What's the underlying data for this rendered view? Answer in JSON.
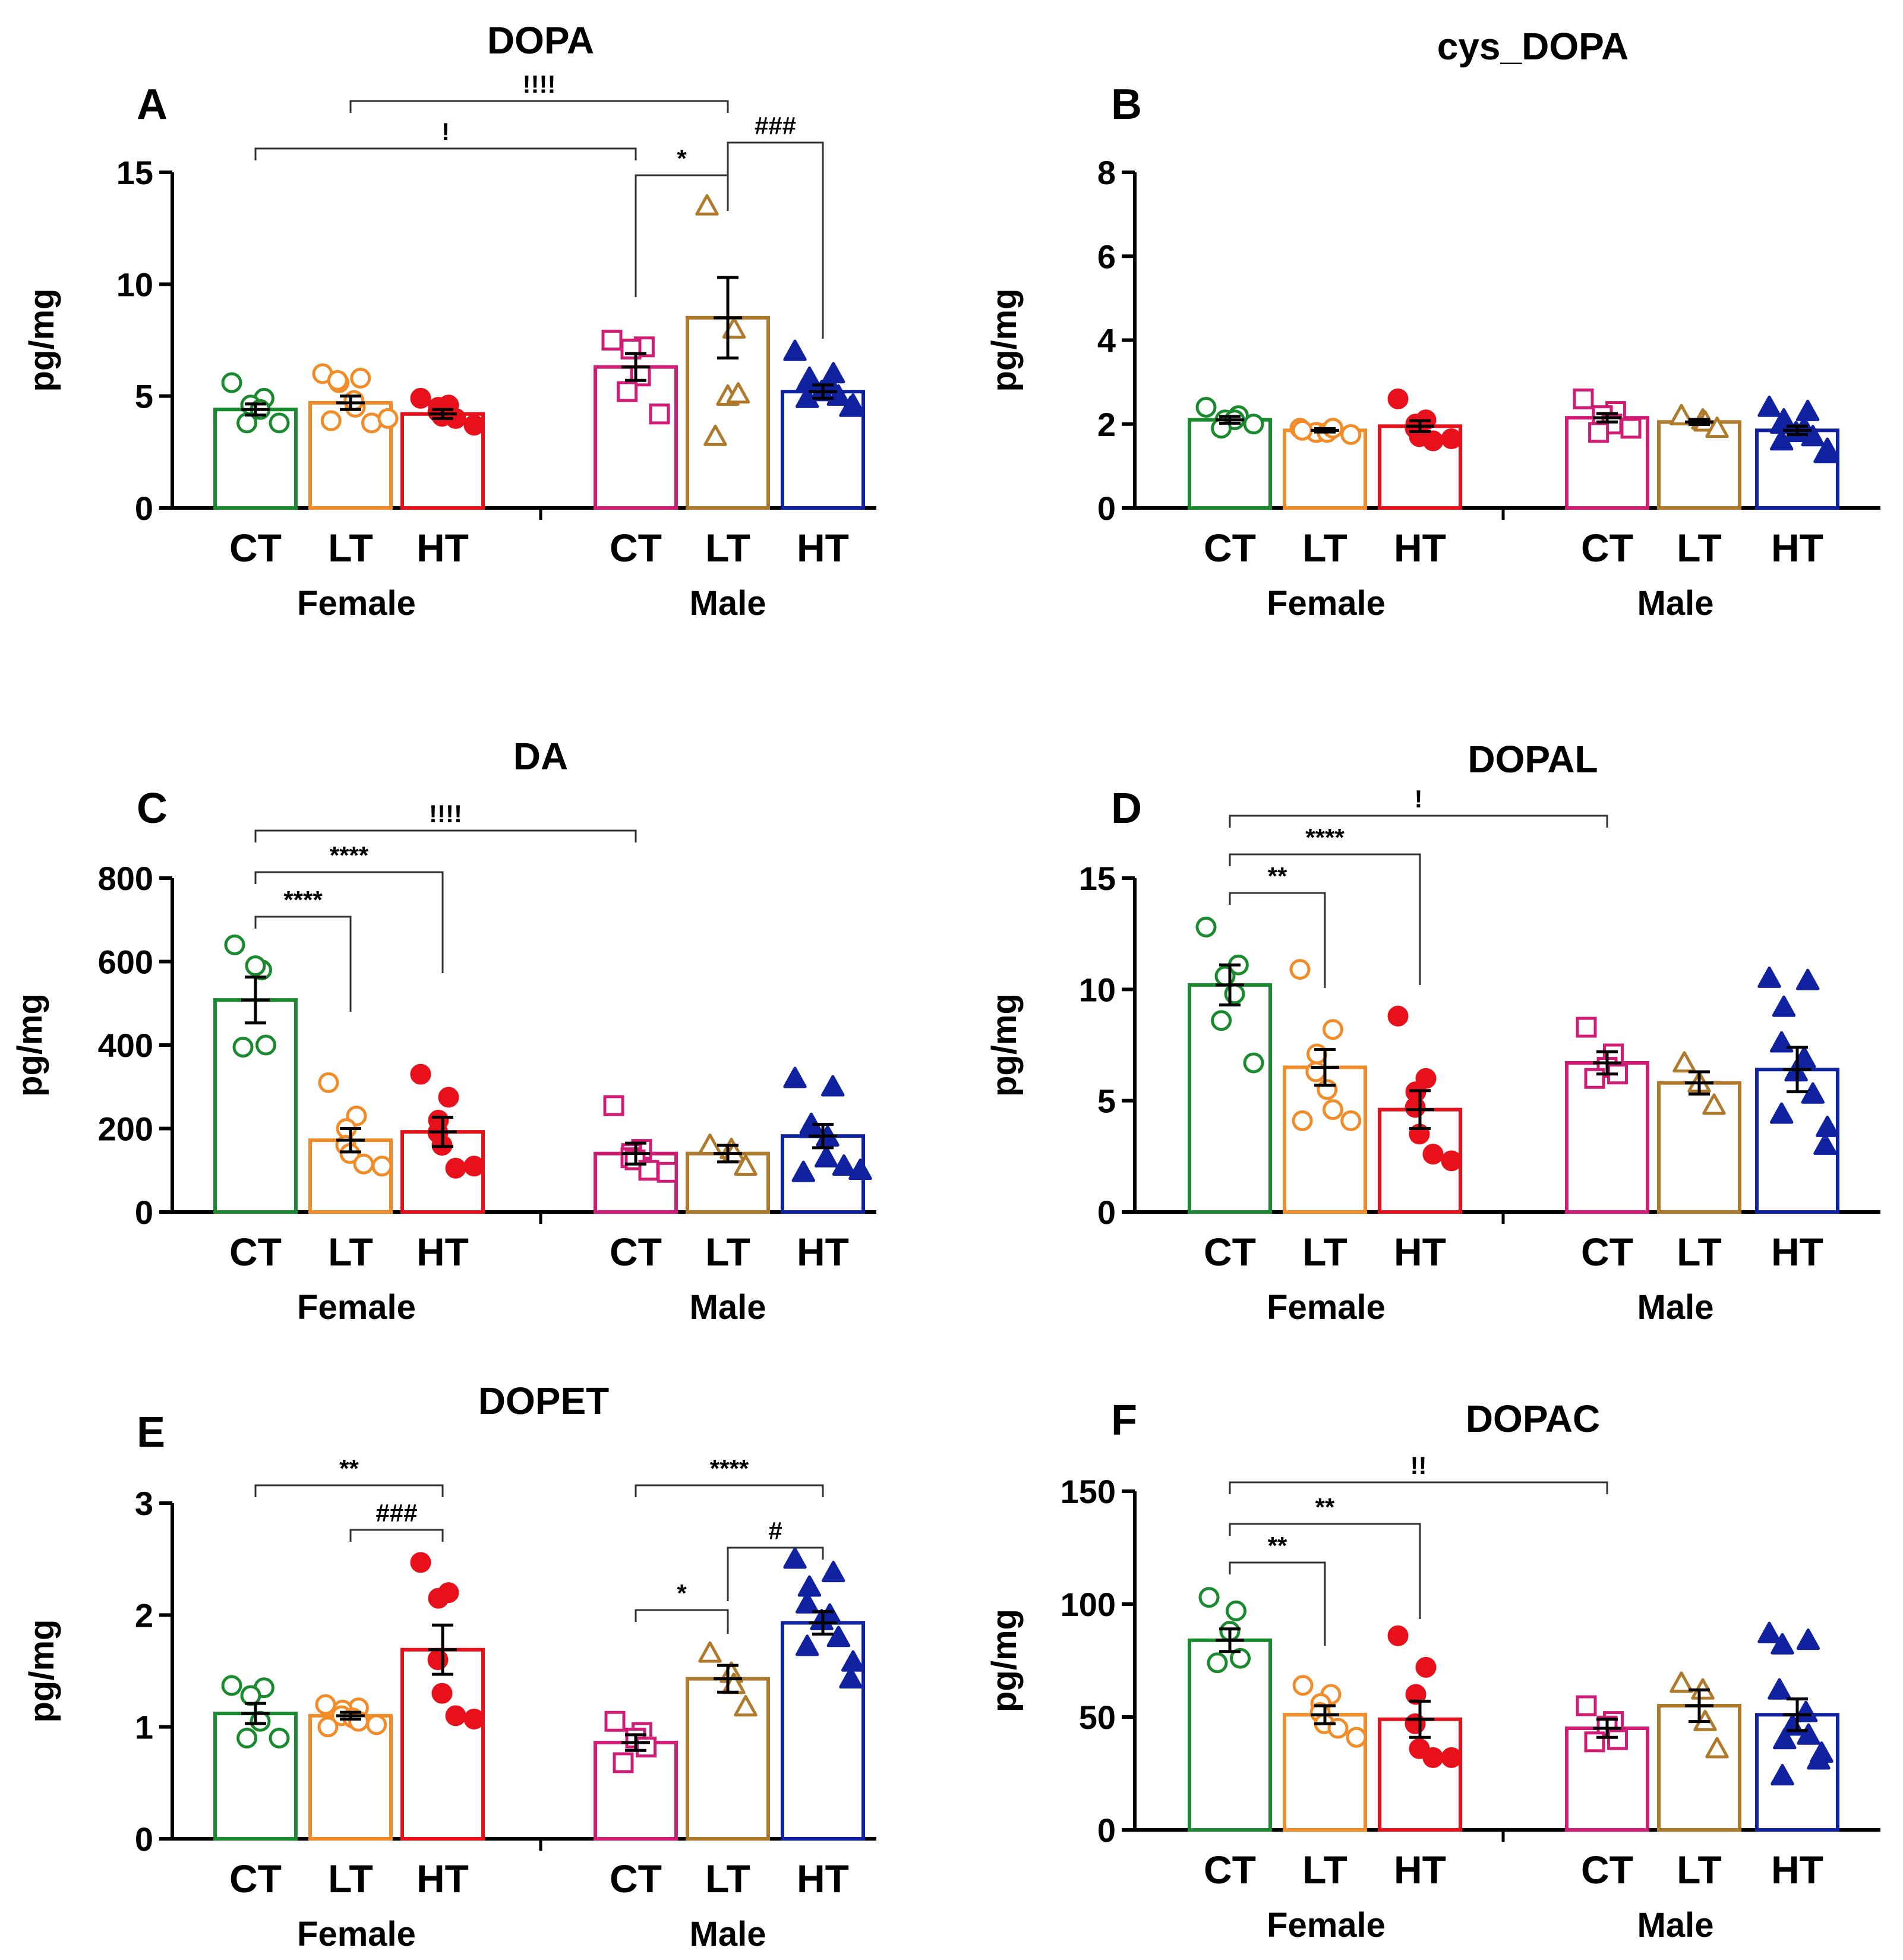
{
  "chart_data": [
    {
      "panel": "A",
      "type": "bar",
      "title": "DOPA",
      "ylabel": "pg/mg",
      "ylim": [
        0,
        15
      ],
      "yticks": [
        "0",
        "5",
        "10",
        "15"
      ],
      "groups": [
        {
          "name": "Female",
          "categories": [
            "CT",
            "LT",
            "HT"
          ]
        },
        {
          "name": "Male",
          "categories": [
            "CT",
            "LT",
            "HT"
          ]
        }
      ],
      "bars": [
        {
          "group": "Female",
          "category": "CT",
          "color": "#1a8a2e",
          "marker": "circle-open",
          "mean": 4.4,
          "sem": 0.25,
          "points": [
            5.6,
            4.9,
            4.6,
            4.4,
            3.8,
            3.8
          ]
        },
        {
          "group": "Female",
          "category": "LT",
          "color": "#f28c28",
          "marker": "circle-open",
          "mean": 4.7,
          "sem": 0.3,
          "points": [
            6.0,
            5.8,
            5.6,
            5.7,
            4.5,
            4.8,
            3.8,
            3.9,
            4.0
          ]
        },
        {
          "group": "Female",
          "category": "HT",
          "color": "#e8111b",
          "marker": "circle-filled",
          "mean": 4.2,
          "sem": 0.2,
          "points": [
            4.9,
            4.6,
            4.5,
            4.3,
            4.1,
            4.0,
            3.7
          ]
        },
        {
          "group": "Male",
          "category": "CT",
          "color": "#d01c74",
          "marker": "square-open",
          "mean": 6.3,
          "sem": 0.6,
          "points": [
            7.5,
            7.2,
            7.1,
            5.9,
            5.2,
            4.2
          ]
        },
        {
          "group": "Male",
          "category": "LT",
          "color": "#b07a2c",
          "marker": "triangle-open",
          "mean": 8.5,
          "sem": 1.8,
          "points": [
            13.5,
            8.0,
            5.0,
            5.1,
            3.2
          ]
        },
        {
          "group": "Male",
          "category": "HT",
          "color": "#1022a0",
          "marker": "triangle-filled",
          "mean": 5.2,
          "sem": 0.3,
          "points": [
            7.0,
            6.0,
            5.8,
            5.6,
            5.5,
            5.2,
            5.0,
            4.9,
            4.6,
            4.5
          ]
        }
      ],
      "brackets": [
        {
          "from": "Female CT",
          "to": "Male CT",
          "label": "!"
        },
        {
          "from": "Female LT",
          "to": "Male LT",
          "label": "!!!!"
        },
        {
          "from": "Male CT",
          "to": "Male LT",
          "label": "*"
        },
        {
          "from": "Male LT",
          "to": "Male HT",
          "label": "###"
        }
      ]
    },
    {
      "panel": "B",
      "type": "bar",
      "title": "cys_DOPA",
      "ylabel": "pg/mg",
      "ylim": [
        0,
        8
      ],
      "yticks": [
        "0",
        "2",
        "4",
        "6",
        "8"
      ],
      "groups": [
        {
          "name": "Female",
          "categories": [
            "CT",
            "LT",
            "HT"
          ]
        },
        {
          "name": "Male",
          "categories": [
            "CT",
            "LT",
            "HT"
          ]
        }
      ],
      "bars": [
        {
          "group": "Female",
          "category": "CT",
          "color": "#1a8a2e",
          "marker": "circle-open",
          "mean": 2.1,
          "sem": 0.08,
          "points": [
            2.4,
            2.2,
            2.1,
            2.1,
            1.9,
            2.0
          ]
        },
        {
          "group": "Female",
          "category": "LT",
          "color": "#f28c28",
          "marker": "circle-open",
          "mean": 1.85,
          "sem": 0.04,
          "points": [
            1.9,
            1.9,
            1.8,
            1.8,
            1.8,
            1.9,
            1.75,
            1.85
          ]
        },
        {
          "group": "Female",
          "category": "HT",
          "color": "#e8111b",
          "marker": "circle-filled",
          "mean": 1.95,
          "sem": 0.13,
          "points": [
            2.6,
            2.1,
            2.0,
            1.9,
            1.7,
            1.6,
            1.65
          ]
        },
        {
          "group": "Male",
          "category": "CT",
          "color": "#d01c74",
          "marker": "square-open",
          "mean": 2.15,
          "sem": 0.1,
          "points": [
            2.6,
            2.3,
            2.2,
            2.0,
            1.8,
            1.9
          ]
        },
        {
          "group": "Male",
          "category": "LT",
          "color": "#b07a2c",
          "marker": "triangle-open",
          "mean": 2.05,
          "sem": 0.06,
          "points": [
            2.2,
            2.1,
            2.05,
            1.9
          ]
        },
        {
          "group": "Male",
          "category": "HT",
          "color": "#1022a0",
          "marker": "triangle-filled",
          "mean": 1.85,
          "sem": 0.1,
          "points": [
            2.4,
            2.3,
            2.1,
            2.0,
            1.9,
            1.8,
            1.7,
            1.6,
            1.4,
            1.3
          ]
        }
      ],
      "brackets": []
    },
    {
      "panel": "C",
      "type": "bar",
      "title": "DA",
      "ylabel": "pg/mg",
      "ylim": [
        0,
        800
      ],
      "yticks": [
        "0",
        "200",
        "400",
        "600",
        "800"
      ],
      "groups": [
        {
          "name": "Female",
          "categories": [
            "CT",
            "LT",
            "HT"
          ]
        },
        {
          "name": "Male",
          "categories": [
            "CT",
            "LT",
            "HT"
          ]
        }
      ],
      "bars": [
        {
          "group": "Female",
          "category": "CT",
          "color": "#1a8a2e",
          "marker": "circle-open",
          "mean": 508,
          "sem": 55,
          "points": [
            640,
            580,
            590,
            400,
            395
          ]
        },
        {
          "group": "Female",
          "category": "LT",
          "color": "#f28c28",
          "marker": "circle-open",
          "mean": 172,
          "sem": 28,
          "points": [
            310,
            230,
            200,
            160,
            140,
            115,
            110
          ]
        },
        {
          "group": "Female",
          "category": "HT",
          "color": "#e8111b",
          "marker": "circle-filled",
          "mean": 192,
          "sem": 35,
          "points": [
            330,
            275,
            220,
            190,
            160,
            105,
            110
          ]
        },
        {
          "group": "Male",
          "category": "CT",
          "color": "#d01c74",
          "marker": "square-open",
          "mean": 140,
          "sem": 25,
          "points": [
            255,
            150,
            140,
            130,
            125,
            100,
            95
          ]
        },
        {
          "group": "Male",
          "category": "LT",
          "color": "#b07a2c",
          "marker": "triangle-open",
          "mean": 140,
          "sem": 20,
          "points": [
            160,
            150,
            140,
            110
          ]
        },
        {
          "group": "Male",
          "category": "HT",
          "color": "#1022a0",
          "marker": "triangle-filled",
          "mean": 182,
          "sem": 28,
          "points": [
            320,
            300,
            210,
            200,
            180,
            130,
            110,
            95,
            100
          ]
        }
      ],
      "brackets": [
        {
          "from": "Female CT",
          "to": "Female LT",
          "label": "****"
        },
        {
          "from": "Female CT",
          "to": "Female HT",
          "label": "****"
        },
        {
          "from": "Female CT",
          "to": "Male CT",
          "label": "!!!!"
        }
      ]
    },
    {
      "panel": "D",
      "type": "bar",
      "title": "DOPAL",
      "ylabel": "pg/mg",
      "ylim": [
        0,
        15
      ],
      "yticks": [
        "0",
        "5",
        "10",
        "15"
      ],
      "groups": [
        {
          "name": "Female",
          "categories": [
            "CT",
            "LT",
            "HT"
          ]
        },
        {
          "name": "Male",
          "categories": [
            "CT",
            "LT",
            "HT"
          ]
        }
      ],
      "bars": [
        {
          "group": "Female",
          "category": "CT",
          "color": "#1a8a2e",
          "marker": "circle-open",
          "mean": 10.2,
          "sem": 0.9,
          "points": [
            12.8,
            11.1,
            10.6,
            9.8,
            8.6,
            6.7
          ]
        },
        {
          "group": "Female",
          "category": "LT",
          "color": "#f28c28",
          "marker": "circle-open",
          "mean": 6.5,
          "sem": 0.8,
          "points": [
            10.9,
            8.2,
            7.1,
            6.3,
            5.5,
            4.6,
            4.1,
            4.1
          ]
        },
        {
          "group": "Female",
          "category": "HT",
          "color": "#e8111b",
          "marker": "circle-filled",
          "mean": 4.6,
          "sem": 0.85,
          "points": [
            8.8,
            6.0,
            5.4,
            4.7,
            3.5,
            2.6,
            2.3
          ]
        },
        {
          "group": "Male",
          "category": "CT",
          "color": "#d01c74",
          "marker": "square-open",
          "mean": 6.7,
          "sem": 0.5,
          "points": [
            8.3,
            7.1,
            6.5,
            6.2,
            6.0
          ]
        },
        {
          "group": "Male",
          "category": "LT",
          "color": "#b07a2c",
          "marker": "triangle-open",
          "mean": 5.8,
          "sem": 0.5,
          "points": [
            6.7,
            5.8,
            4.8
          ]
        },
        {
          "group": "Male",
          "category": "HT",
          "color": "#1022a0",
          "marker": "triangle-filled",
          "mean": 6.4,
          "sem": 1.0,
          "points": [
            10.5,
            10.4,
            9.2,
            7.6,
            6.9,
            6.3,
            5.3,
            4.4,
            3.8,
            3.0
          ]
        }
      ],
      "brackets": [
        {
          "from": "Female CT",
          "to": "Female LT",
          "label": "**"
        },
        {
          "from": "Female CT",
          "to": "Female HT",
          "label": "****"
        },
        {
          "from": "Female CT",
          "to": "Male CT",
          "label": "!"
        }
      ]
    },
    {
      "panel": "E",
      "type": "bar",
      "title": "DOPET",
      "ylabel": "pg/mg",
      "ylim": [
        0,
        3
      ],
      "yticks": [
        "0",
        "1",
        "2",
        "3"
      ],
      "groups": [
        {
          "name": "Female",
          "categories": [
            "CT",
            "LT",
            "HT"
          ]
        },
        {
          "name": "Male",
          "categories": [
            "CT",
            "LT",
            "HT"
          ]
        }
      ],
      "bars": [
        {
          "group": "Female",
          "category": "CT",
          "color": "#1a8a2e",
          "marker": "circle-open",
          "mean": 1.12,
          "sem": 0.09,
          "points": [
            1.37,
            1.35,
            1.28,
            1.05,
            0.9,
            0.9
          ]
        },
        {
          "group": "Female",
          "category": "LT",
          "color": "#f28c28",
          "marker": "circle-open",
          "mean": 1.1,
          "sem": 0.03,
          "points": [
            1.2,
            1.17,
            1.15,
            1.1,
            1.08,
            1.05,
            1.02,
            1.0
          ]
        },
        {
          "group": "Female",
          "category": "HT",
          "color": "#e8111b",
          "marker": "circle-filled",
          "mean": 1.69,
          "sem": 0.22,
          "points": [
            2.47,
            2.2,
            2.15,
            1.6,
            1.3,
            1.1,
            1.07
          ]
        },
        {
          "group": "Male",
          "category": "CT",
          "color": "#d01c74",
          "marker": "square-open",
          "mean": 0.86,
          "sem": 0.07,
          "points": [
            1.05,
            0.95,
            0.9,
            0.82,
            0.68
          ]
        },
        {
          "group": "Male",
          "category": "LT",
          "color": "#b07a2c",
          "marker": "triangle-open",
          "mean": 1.43,
          "sem": 0.12,
          "points": [
            1.66,
            1.48,
            1.38,
            1.18
          ]
        },
        {
          "group": "Male",
          "category": "HT",
          "color": "#1022a0",
          "marker": "triangle-filled",
          "mean": 1.93,
          "sem": 0.1,
          "points": [
            2.5,
            2.38,
            2.25,
            2.1,
            2.0,
            1.95,
            1.8,
            1.72,
            1.58,
            1.43
          ]
        }
      ],
      "brackets": [
        {
          "from": "Female CT",
          "to": "Female HT",
          "label": "**"
        },
        {
          "from": "Female LT",
          "to": "Female HT",
          "label": "###"
        },
        {
          "from": "Male CT",
          "to": "Male HT",
          "label": "****"
        },
        {
          "from": "Male CT",
          "to": "Male LT",
          "label": "*"
        },
        {
          "from": "Male LT",
          "to": "Male HT",
          "label": "#"
        }
      ]
    },
    {
      "panel": "F",
      "type": "bar",
      "title": "DOPAC",
      "ylabel": "pg/mg",
      "ylim": [
        0,
        150
      ],
      "yticks": [
        "0",
        "50",
        "100",
        "150"
      ],
      "groups": [
        {
          "name": "Female",
          "categories": [
            "CT",
            "LT",
            "HT"
          ]
        },
        {
          "name": "Male",
          "categories": [
            "CT",
            "LT",
            "HT"
          ]
        }
      ],
      "bars": [
        {
          "group": "Female",
          "category": "CT",
          "color": "#1a8a2e",
          "marker": "circle-open",
          "mean": 84,
          "sem": 5,
          "points": [
            103,
            97,
            88,
            76,
            74
          ]
        },
        {
          "group": "Female",
          "category": "LT",
          "color": "#f28c28",
          "marker": "circle-open",
          "mean": 51,
          "sem": 4,
          "points": [
            64,
            60,
            56,
            52,
            47,
            45,
            41
          ]
        },
        {
          "group": "Female",
          "category": "HT",
          "color": "#e8111b",
          "marker": "circle-filled",
          "mean": 49,
          "sem": 8,
          "points": [
            86,
            72,
            60,
            47,
            36,
            32,
            32
          ]
        },
        {
          "group": "Male",
          "category": "CT",
          "color": "#d01c74",
          "marker": "square-open",
          "mean": 45,
          "sem": 4,
          "points": [
            55,
            48,
            46,
            40,
            39
          ]
        },
        {
          "group": "Male",
          "category": "LT",
          "color": "#b07a2c",
          "marker": "triangle-open",
          "mean": 55,
          "sem": 7,
          "points": [
            65,
            62,
            48,
            36
          ]
        },
        {
          "group": "Male",
          "category": "HT",
          "color": "#1022a0",
          "marker": "triangle-filled",
          "mean": 51,
          "sem": 7,
          "points": [
            87,
            84,
            82,
            62,
            52,
            46,
            42,
            40,
            34,
            31,
            24
          ]
        }
      ],
      "brackets": [
        {
          "from": "Female CT",
          "to": "Female LT",
          "label": "**"
        },
        {
          "from": "Female CT",
          "to": "Female HT",
          "label": "**"
        },
        {
          "from": "Female CT",
          "to": "Male CT",
          "label": "!!"
        }
      ]
    }
  ]
}
